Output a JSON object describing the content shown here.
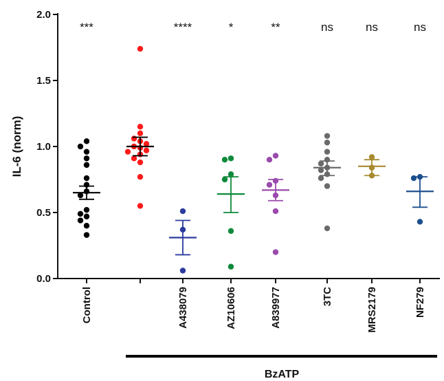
{
  "chart_data": {
    "type": "scatter",
    "ylabel": "IL-6  (norm)",
    "ylim": [
      0,
      2.0
    ],
    "yticks": [
      "0.0",
      "0.5",
      "1.0",
      "1.5",
      "2.0"
    ],
    "bracket_label": "BzATP",
    "groups": [
      {
        "name": "Control",
        "color": "#000000",
        "significance": "***",
        "mean": 0.65,
        "sem_low": 0.6,
        "sem_high": 0.7,
        "values": [
          1.04,
          1.0,
          0.96,
          0.91,
          0.86,
          0.76,
          0.71,
          0.66,
          0.63,
          0.52,
          0.49,
          0.47,
          0.44,
          0.4,
          0.33
        ]
      },
      {
        "name": "",
        "color": "#ff1a1a",
        "significance": "",
        "mean": 1.0,
        "sem_low": 0.93,
        "sem_high": 1.07,
        "values": [
          1.74,
          1.15,
          1.1,
          1.06,
          1.04,
          1.02,
          1.0,
          0.99,
          0.97,
          0.96,
          0.94,
          0.91,
          0.88,
          0.77,
          0.55
        ]
      },
      {
        "name": "A438079",
        "color": "#2a3a9e",
        "significance": "****",
        "mean": 0.31,
        "sem_low": 0.18,
        "sem_high": 0.44,
        "values": [
          0.51,
          0.37,
          0.06
        ]
      },
      {
        "name": "AZ10606",
        "color": "#0d8a3a",
        "significance": "*",
        "mean": 0.64,
        "sem_low": 0.5,
        "sem_high": 0.77,
        "values": [
          0.91,
          0.9,
          0.79,
          0.75,
          0.36,
          0.09
        ]
      },
      {
        "name": "A839977",
        "color": "#9a4aad",
        "significance": "**",
        "mean": 0.67,
        "sem_low": 0.59,
        "sem_high": 0.75,
        "values": [
          0.93,
          0.9,
          0.74,
          0.71,
          0.63,
          0.51,
          0.2
        ]
      },
      {
        "name": "3TC",
        "color": "#6a6a6a",
        "significance": "ns",
        "mean": 0.84,
        "sem_low": 0.78,
        "sem_high": 0.89,
        "values": [
          1.08,
          1.03,
          0.96,
          0.9,
          0.87,
          0.84,
          0.82,
          0.79,
          0.76,
          0.7,
          0.38
        ]
      },
      {
        "name": "MRS2179",
        "color": "#a88a2e",
        "significance": "ns",
        "mean": 0.85,
        "sem_low": 0.78,
        "sem_high": 0.9,
        "values": [
          0.92,
          0.84,
          0.78
        ]
      },
      {
        "name": "NF279",
        "color": "#1d4f8f",
        "significance": "ns",
        "mean": 0.66,
        "sem_low": 0.54,
        "sem_high": 0.77,
        "values": [
          0.77,
          0.76,
          0.43
        ]
      }
    ]
  }
}
